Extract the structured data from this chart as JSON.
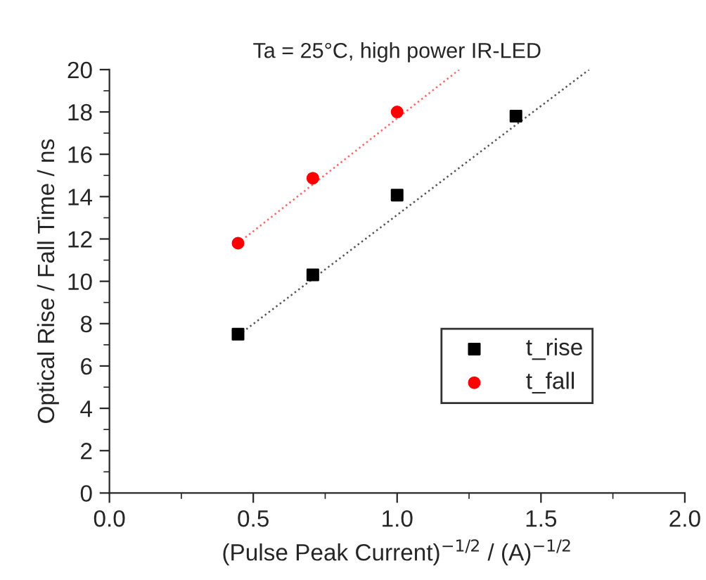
{
  "chart_data": {
    "type": "scatter",
    "title": "Ta = 25°C, high power IR-LED",
    "xlabel": "(Pulse Peak Current)$^{−1/2}$ / (A)$^{−1/2}$",
    "ylabel": "Optical Rise / Fall Time / ns",
    "xlim": [
      0,
      2
    ],
    "ylim": [
      0,
      20
    ],
    "xticks": [
      {
        "value": 0,
        "label": "0.0"
      },
      0.5,
      {
        "value": 1,
        "label": "1.0"
      },
      1.5,
      {
        "value": 2,
        "label": "2.0"
      }
    ],
    "yticks": [
      0,
      2,
      4,
      6,
      8,
      10,
      12,
      14,
      16,
      18,
      20
    ],
    "grid": false,
    "legend": "right",
    "series": [
      {
        "name": "t_rise",
        "color": "#000000",
        "marker": "square",
        "x": [
          0.447,
          0.707,
          1.0,
          1.413
        ],
        "values": [
          7.5,
          10.3,
          14.07,
          17.8
        ]
      },
      {
        "name": "t_fall",
        "color": "#ff0000",
        "marker": "circle",
        "x": [
          0.447,
          0.707,
          1.0
        ],
        "values": [
          11.8,
          14.87,
          18.0
        ]
      },
      {
        "type": "line",
        "color": "#555555",
        "line_style": "dotted",
        "marker": "none",
        "x": [
          0.45,
          1.667
        ],
        "values": [
          7.47,
          20
        ]
      },
      {
        "type": "line",
        "color": "#ff6666",
        "line_style": "dotted",
        "marker": "none",
        "x": [
          0.447,
          1.216
        ],
        "values": [
          11.8,
          20
        ]
      }
    ]
  }
}
